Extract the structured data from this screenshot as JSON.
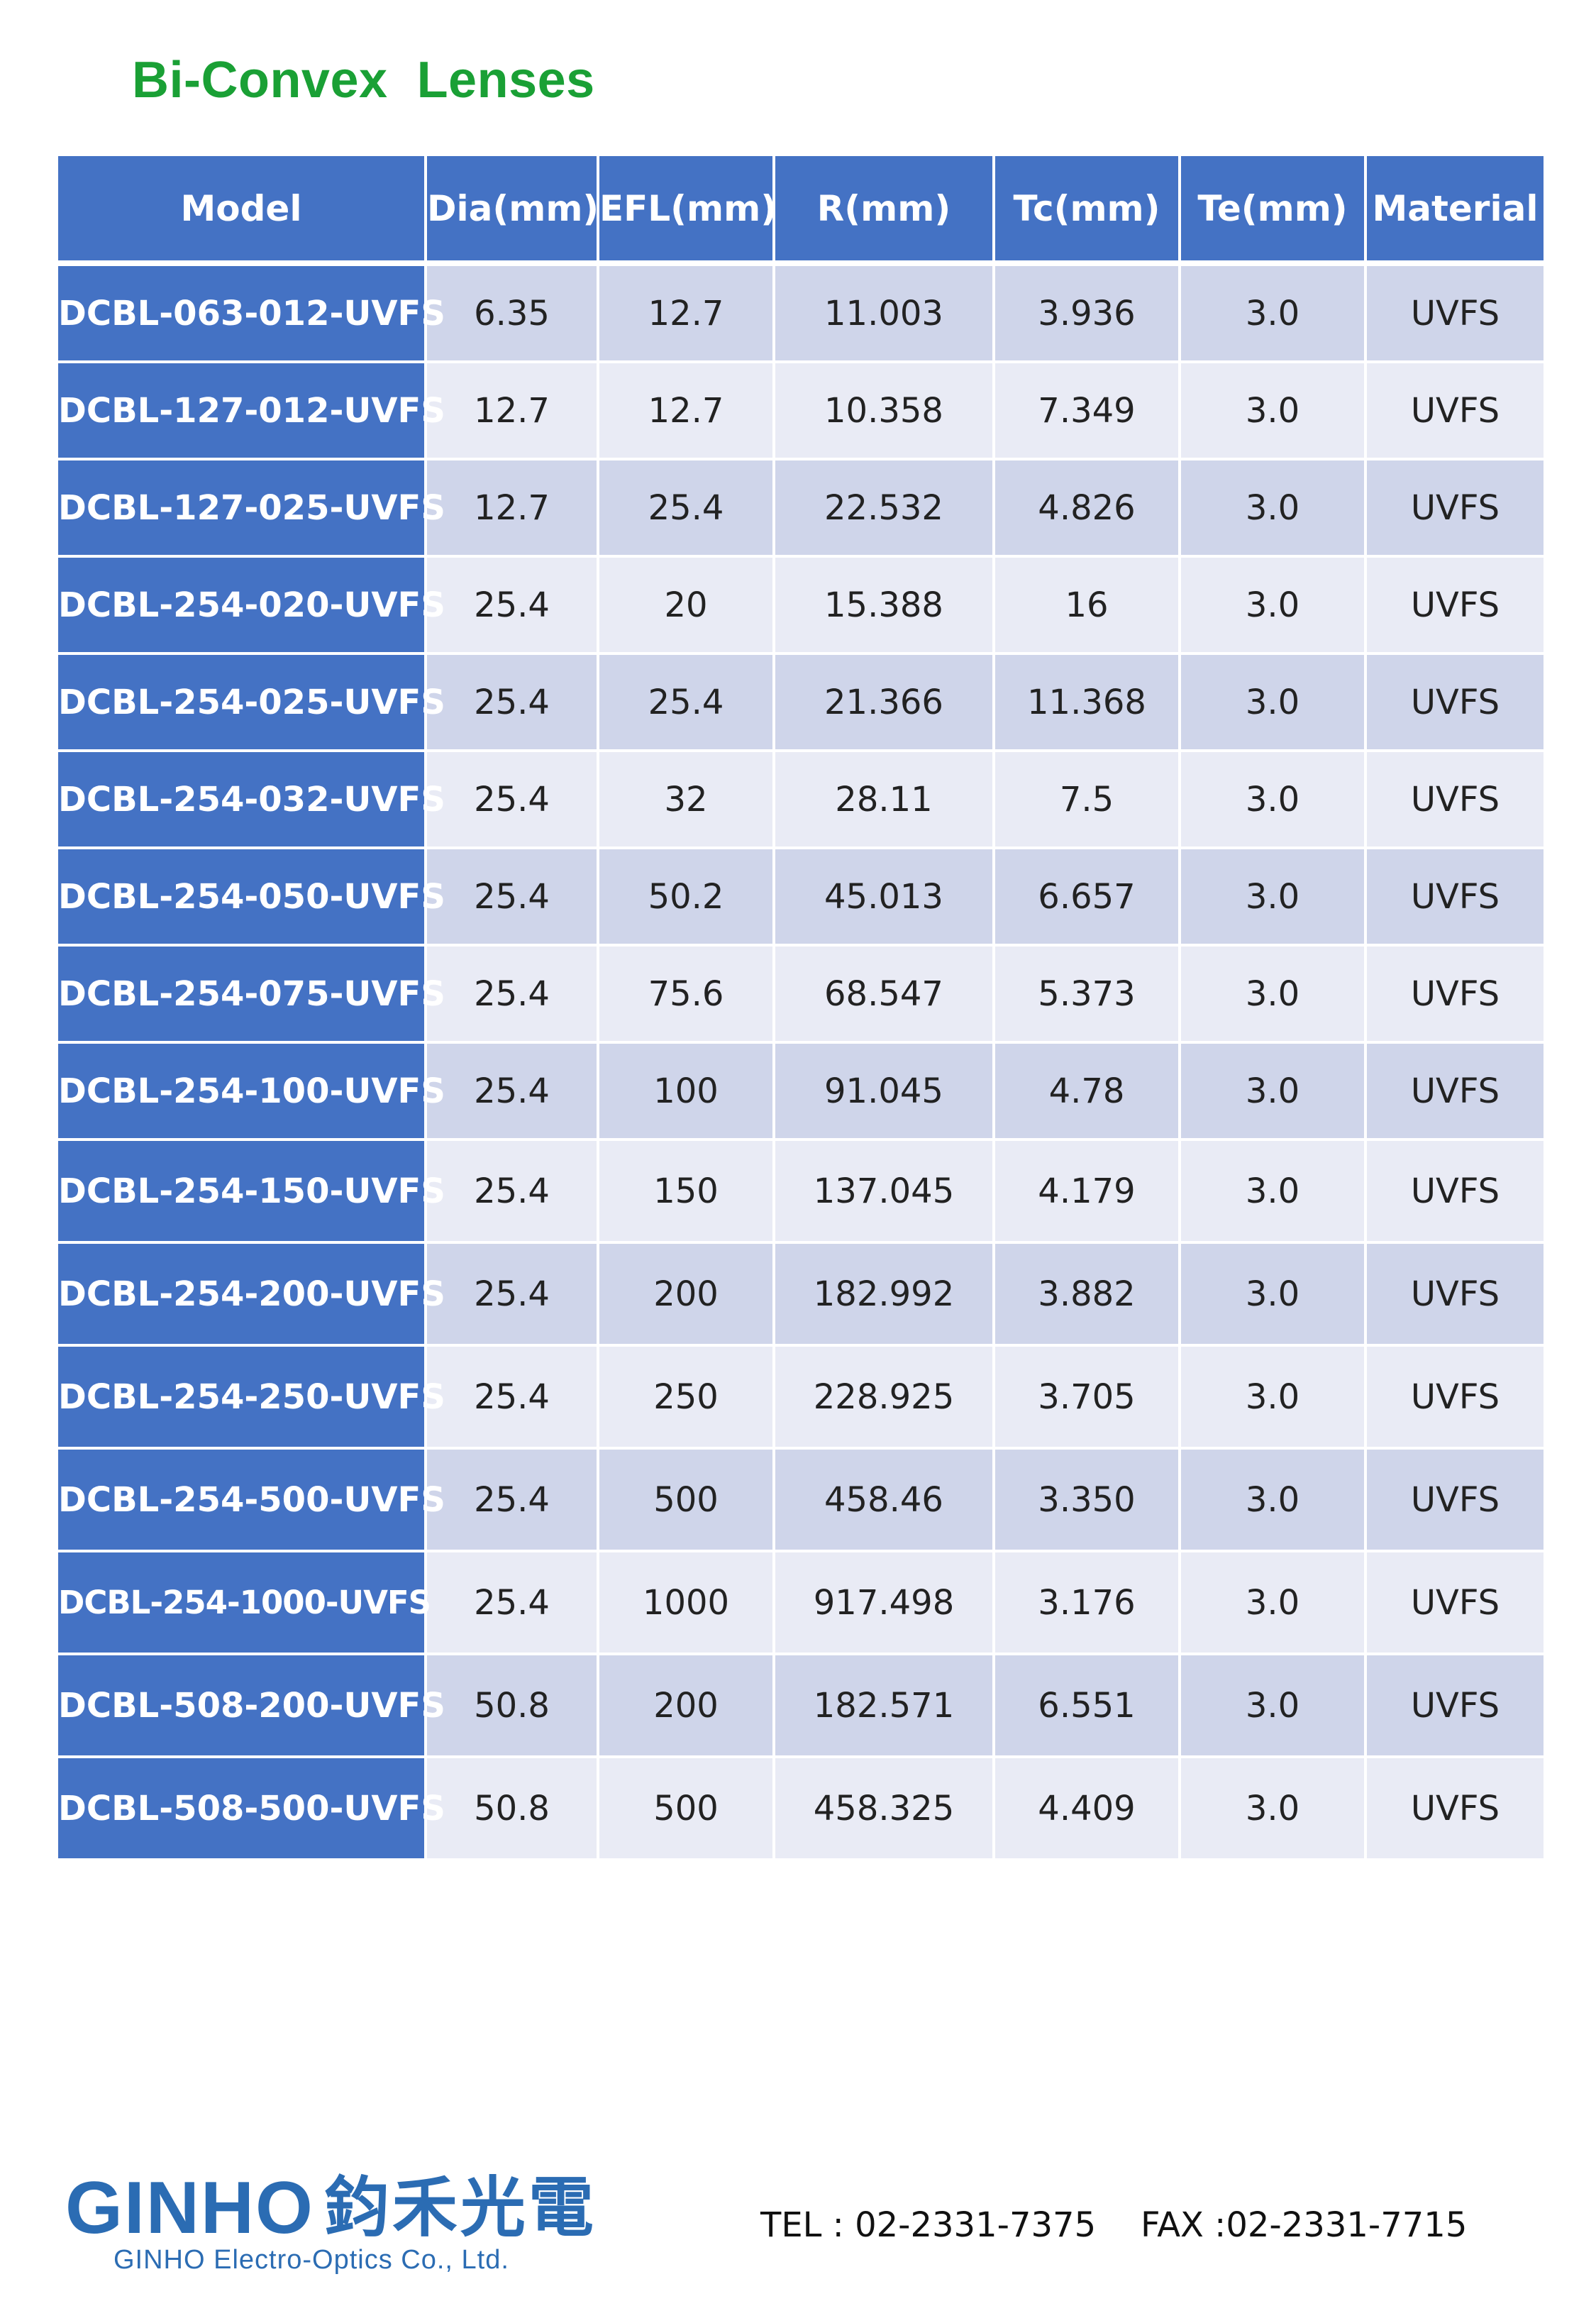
{
  "title": "Bi-Convex  Lenses",
  "table": {
    "headers": [
      "Model",
      "Dia(mm)",
      "EFL(mm)",
      "R(mm)",
      "Tc(mm)",
      "Te(mm)",
      "Material"
    ],
    "rows": [
      [
        "DCBL-063-012-UVFS",
        "6.35",
        "12.7",
        "11.003",
        "3.936",
        "3.0",
        "UVFS"
      ],
      [
        "DCBL-127-012-UVFS",
        "12.7",
        "12.7",
        "10.358",
        "7.349",
        "3.0",
        "UVFS"
      ],
      [
        "DCBL-127-025-UVFS",
        "12.7",
        "25.4",
        "22.532",
        "4.826",
        "3.0",
        "UVFS"
      ],
      [
        "DCBL-254-020-UVFS",
        "25.4",
        "20",
        "15.388",
        "16",
        "3.0",
        "UVFS"
      ],
      [
        "DCBL-254-025-UVFS",
        "25.4",
        "25.4",
        "21.366",
        "11.368",
        "3.0",
        "UVFS"
      ],
      [
        "DCBL-254-032-UVFS",
        "25.4",
        "32",
        "28.11",
        "7.5",
        "3.0",
        "UVFS"
      ],
      [
        "DCBL-254-050-UVFS",
        "25.4",
        "50.2",
        "45.013",
        "6.657",
        "3.0",
        "UVFS"
      ],
      [
        "DCBL-254-075-UVFS",
        "25.4",
        "75.6",
        "68.547",
        "5.373",
        "3.0",
        "UVFS"
      ],
      [
        "DCBL-254-100-UVFS",
        "25.4",
        "100",
        "91.045",
        "4.78",
        "3.0",
        "UVFS"
      ],
      [
        "DCBL-254-150-UVFS",
        "25.4",
        "150",
        "137.045",
        "4.179",
        "3.0",
        "UVFS"
      ],
      [
        "DCBL-254-200-UVFS",
        "25.4",
        "200",
        "182.992",
        "3.882",
        "3.0",
        "UVFS"
      ],
      [
        "DCBL-254-250-UVFS",
        "25.4",
        "250",
        "228.925",
        "3.705",
        "3.0",
        "UVFS"
      ],
      [
        "DCBL-254-500-UVFS",
        "25.4",
        "500",
        "458.46",
        "3.350",
        "3.0",
        "UVFS"
      ],
      [
        "DCBL-254-1000-UVFS",
        "25.4",
        "1000",
        "917.498",
        "3.176",
        "3.0",
        "UVFS"
      ],
      [
        "DCBL-508-200-UVFS",
        "50.8",
        "200",
        "182.571",
        "6.551",
        "3.0",
        "UVFS"
      ],
      [
        "DCBL-508-500-UVFS",
        "50.8",
        "500",
        "458.325",
        "4.409",
        "3.0",
        "UVFS"
      ]
    ]
  },
  "footer": {
    "logo_word": "GINHO",
    "logo_cjk": "鈞禾光電",
    "company": "GINHO Electro-Optics Co., Ltd.",
    "tel": "TEL : 02-2331-7375",
    "fax": "FAX :02-2331-7715"
  },
  "colors": {
    "title": "#1aa035",
    "header_bg": "#4472c4",
    "row_odd": "#cfd5ea",
    "row_even": "#e9ebf5",
    "logo": "#2b6cb3"
  }
}
